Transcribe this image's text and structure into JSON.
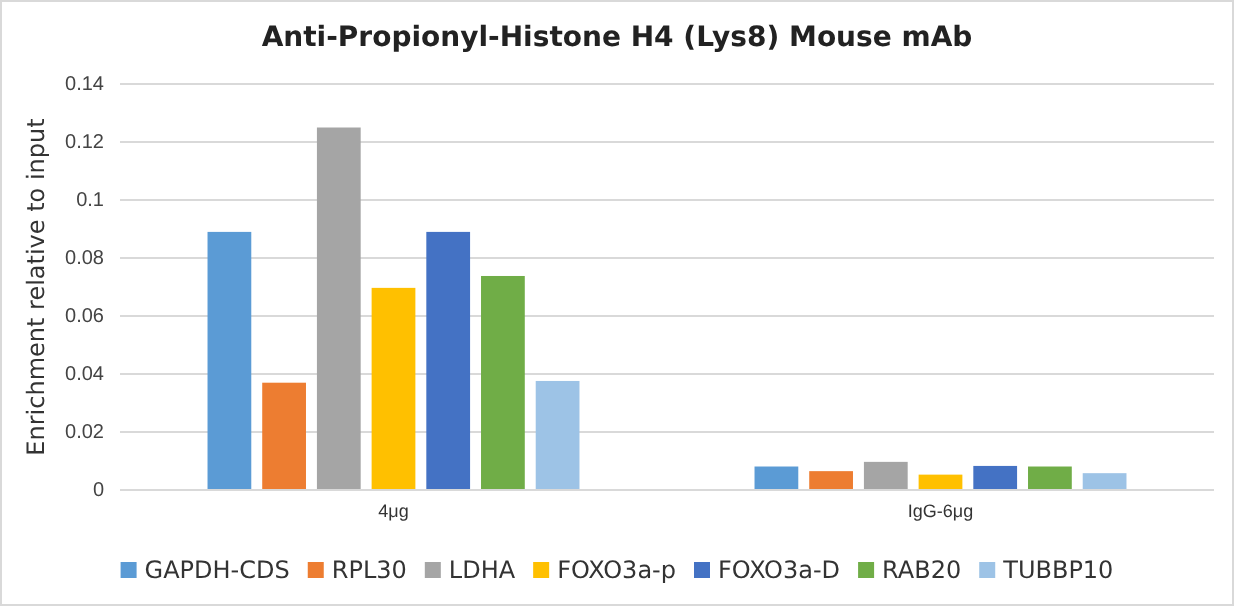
{
  "chart_data": {
    "type": "bar",
    "title": "Anti-Propionyl-Histone H4 (Lys8) Mouse mAb",
    "ylabel": "Enrichment relative to input",
    "categories": [
      "4μg",
      "IgG-6μg"
    ],
    "series": [
      {
        "name": "GAPDH-CDS",
        "color": "#5b9bd5",
        "values": [
          0.089,
          0.0081
        ]
      },
      {
        "name": "RPL30",
        "color": "#ed7d31",
        "values": [
          0.037,
          0.0065
        ]
      },
      {
        "name": "LDHA",
        "color": "#a5a5a5",
        "values": [
          0.125,
          0.0097
        ]
      },
      {
        "name": "FOXO3a-p",
        "color": "#ffc000",
        "values": [
          0.0697,
          0.0053
        ]
      },
      {
        "name": "FOXO3a-D",
        "color": "#4472c4",
        "values": [
          0.089,
          0.0083
        ]
      },
      {
        "name": "RAB20",
        "color": "#70ad47",
        "values": [
          0.0738,
          0.0081
        ]
      },
      {
        "name": "TUBBP10",
        "color": "#9dc3e6",
        "values": [
          0.0376,
          0.0058
        ]
      }
    ],
    "ylim": [
      0,
      0.14
    ],
    "yticks": [
      0,
      0.02,
      0.04,
      0.06,
      0.08,
      0.1,
      0.12,
      0.14
    ],
    "grid": "y",
    "legend": "bottom"
  }
}
